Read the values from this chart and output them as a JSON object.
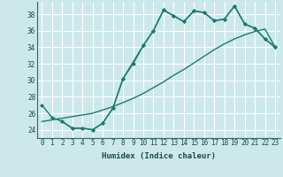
{
  "xlabel": "Humidex (Indice chaleur)",
  "background_color": "#cce8ea",
  "grid_color": "#ffffff",
  "line_color": "#1a7a6e",
  "xlim": [
    -0.5,
    23.5
  ],
  "ylim": [
    23,
    39.5
  ],
  "yticks": [
    24,
    26,
    28,
    30,
    32,
    34,
    36,
    38
  ],
  "xticks": [
    0,
    1,
    2,
    3,
    4,
    5,
    6,
    7,
    8,
    9,
    10,
    11,
    12,
    13,
    14,
    15,
    16,
    17,
    18,
    19,
    20,
    21,
    22,
    23
  ],
  "line1_x": [
    0,
    1,
    2,
    3,
    4,
    5,
    6,
    7,
    8,
    10,
    11,
    12,
    13,
    14,
    15,
    16,
    17,
    18,
    19,
    20,
    21,
    22,
    23
  ],
  "line1_y": [
    27,
    25.5,
    25,
    24.2,
    24.2,
    24,
    24.8,
    26.6,
    30.2,
    34.2,
    36.0,
    38.5,
    37.8,
    37.1,
    38.4,
    38.2,
    37.2,
    37.4,
    39.0,
    36.8,
    36.3,
    35.0,
    34.0
  ],
  "line2_x": [
    2,
    3,
    4,
    5,
    6,
    7,
    8,
    9,
    10,
    11,
    12,
    13,
    14,
    15,
    16,
    17,
    18,
    19,
    20,
    21,
    22,
    23
  ],
  "line2_y": [
    25,
    24.2,
    24.2,
    24.0,
    24.8,
    26.6,
    30.2,
    32.0,
    34.2,
    36.0,
    38.5,
    37.8,
    37.1,
    38.4,
    38.2,
    37.2,
    37.4,
    39.0,
    36.8,
    36.3,
    35.0,
    34.0
  ],
  "line3_x": [
    0,
    1,
    2,
    3,
    4,
    5,
    6,
    7,
    8,
    9,
    10,
    11,
    12,
    13,
    14,
    15,
    16,
    17,
    18,
    19,
    20,
    21,
    22,
    23
  ],
  "line3_y": [
    25.0,
    25.2,
    25.4,
    25.6,
    25.8,
    26.0,
    26.4,
    26.8,
    27.3,
    27.8,
    28.4,
    29.1,
    29.8,
    30.6,
    31.3,
    32.1,
    32.9,
    33.7,
    34.4,
    35.0,
    35.5,
    35.9,
    36.2,
    34.0
  ],
  "marker_size": 2.5,
  "linewidth": 1.0
}
